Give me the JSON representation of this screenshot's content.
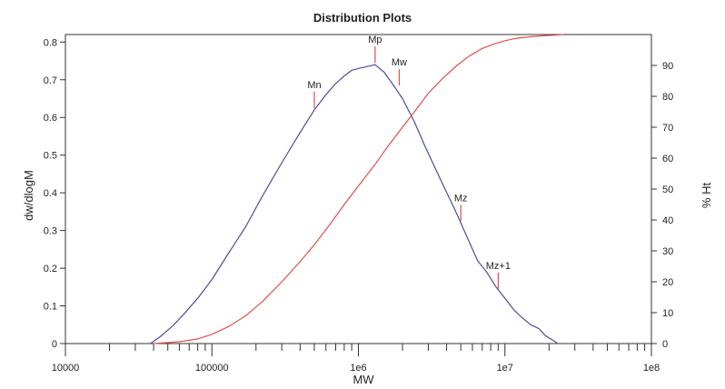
{
  "chart_data": {
    "type": "line",
    "title": "Distribution Plots",
    "xlabel": "MW",
    "ylabel": "dw/dlogM",
    "y2label": "% Ht",
    "x_scale": "log",
    "xlim": [
      10000,
      100000000
    ],
    "ylim": [
      0,
      0.82
    ],
    "y2lim": [
      0,
      100
    ],
    "x_ticks": [
      {
        "value": 10000,
        "label": "10000"
      },
      {
        "value": 100000,
        "label": "100000"
      },
      {
        "value": 1000000,
        "label": "1e6"
      },
      {
        "value": 10000000,
        "label": "1e7"
      },
      {
        "value": 100000000,
        "label": "1e8"
      }
    ],
    "y_ticks": [
      {
        "value": 0,
        "label": "0"
      },
      {
        "value": 0.1,
        "label": "0.1"
      },
      {
        "value": 0.2,
        "label": "0.2"
      },
      {
        "value": 0.3,
        "label": "0.3"
      },
      {
        "value": 0.4,
        "label": "0.4"
      },
      {
        "value": 0.5,
        "label": "0.5"
      },
      {
        "value": 0.6,
        "label": "0.6"
      },
      {
        "value": 0.7,
        "label": "0.7"
      },
      {
        "value": 0.8,
        "label": "0.8"
      }
    ],
    "y2_ticks": [
      {
        "value": 0,
        "label": "0"
      },
      {
        "value": 10,
        "label": "10"
      },
      {
        "value": 20,
        "label": "20"
      },
      {
        "value": 30,
        "label": "30"
      },
      {
        "value": 40,
        "label": "40"
      },
      {
        "value": 50,
        "label": "50"
      },
      {
        "value": 60,
        "label": "60"
      },
      {
        "value": 70,
        "label": "70"
      },
      {
        "value": 80,
        "label": "80"
      },
      {
        "value": 90,
        "label": "90"
      }
    ],
    "grid": false,
    "legend": "none",
    "series": [
      {
        "axis": "left",
        "color": "#4a4f9a",
        "x": [
          38000,
          45000,
          55000,
          65000,
          80000,
          100000,
          130000,
          170000,
          220000,
          300000,
          400000,
          500000,
          600000,
          700000,
          800000,
          900000,
          1000000,
          1150000,
          1300000,
          1500000,
          1700000,
          2000000,
          2400000,
          2800000,
          3300000,
          3900000,
          4500000,
          5000000,
          5700000,
          6500000,
          7500000,
          8700000,
          10000000,
          11500000,
          13000000,
          15000000,
          17000000,
          19000000,
          21000000,
          23000000
        ],
        "values": [
          0.0,
          0.02,
          0.05,
          0.08,
          0.12,
          0.17,
          0.24,
          0.31,
          0.39,
          0.48,
          0.56,
          0.62,
          0.66,
          0.69,
          0.71,
          0.725,
          0.73,
          0.735,
          0.74,
          0.72,
          0.69,
          0.65,
          0.59,
          0.53,
          0.47,
          0.41,
          0.36,
          0.32,
          0.27,
          0.22,
          0.19,
          0.15,
          0.12,
          0.09,
          0.07,
          0.05,
          0.04,
          0.02,
          0.01,
          0.0
        ]
      },
      {
        "axis": "right",
        "color": "#e0504a",
        "x": [
          40000,
          60000,
          80000,
          100000,
          130000,
          170000,
          220000,
          300000,
          400000,
          500000,
          650000,
          800000,
          1000000,
          1300000,
          1600000,
          2000000,
          2500000,
          3000000,
          3800000,
          4700000,
          5700000,
          7000000,
          8500000,
          10000000,
          12000000,
          15000000,
          18000000,
          22000000,
          25000000
        ],
        "values": [
          0.0,
          0.6,
          1.5,
          3.0,
          5.5,
          9.0,
          13.5,
          20.0,
          26.5,
          32.0,
          39.0,
          45.0,
          51.0,
          58.0,
          64.0,
          70.0,
          76.0,
          81.0,
          86.0,
          90.0,
          93.0,
          95.5,
          97.0,
          98.0,
          98.8,
          99.3,
          99.6,
          99.8,
          100.0
        ]
      }
    ],
    "markers": [
      {
        "label": "Mn",
        "x": 500000,
        "y": 0.62
      },
      {
        "label": "Mp",
        "x": 1300000,
        "y": 0.74
      },
      {
        "label": "Mw",
        "x": 1900000,
        "y": 0.68
      },
      {
        "label": "Mz",
        "x": 5000000,
        "y": 0.32
      },
      {
        "label": "Mz+1",
        "x": 9000000,
        "y": 0.14
      }
    ],
    "marker_color": "#e0504a"
  }
}
